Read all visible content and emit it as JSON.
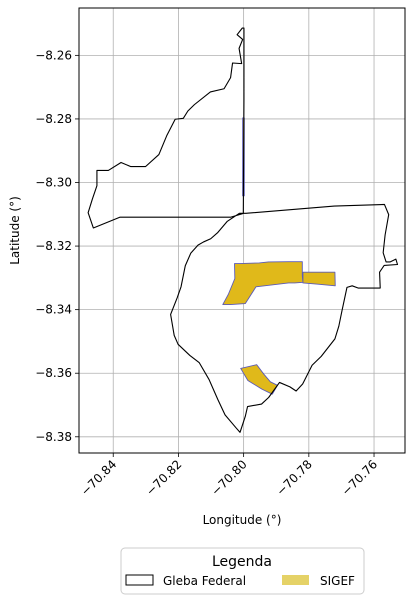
{
  "chart_data": {
    "type": "map",
    "xlabel": "Longitude (°)",
    "ylabel": "Latitude (°)",
    "xlim": [
      -70.8505,
      -70.7505
    ],
    "ylim": [
      -8.3851,
      -8.2451
    ],
    "xticks": [
      -70.84,
      -70.82,
      -70.8,
      -70.78,
      -70.76
    ],
    "xtick_labels": [
      "−70.84",
      "−70.82",
      "−70.80",
      "−70.78",
      "−70.76"
    ],
    "yticks": [
      -8.38,
      -8.36,
      -8.34,
      -8.32,
      -8.3,
      -8.28,
      -8.26
    ],
    "ytick_labels": [
      "−8.38",
      "−8.36",
      "−8.34",
      "−8.32",
      "−8.30",
      "−8.28",
      "−8.26"
    ],
    "grid": true,
    "legend": {
      "title": "Legenda",
      "placement": "bottom-center",
      "entries": [
        {
          "label": "Gleba Federal",
          "style": "outline",
          "color": "#000000"
        },
        {
          "label": "SIGEF",
          "style": "fill",
          "color": "#e5d267"
        }
      ]
    },
    "layers": [
      {
        "name": "Gleba Federal",
        "fill": "none",
        "stroke": "#000000",
        "polygons": [
          [
            [
              -70.8004,
              -8.2514
            ],
            [
              -70.7999,
              -8.2514
            ],
            [
              -70.7999,
              -8.2739
            ],
            [
              -70.8001,
              -8.3097
            ],
            [
              -70.7993,
              -8.3097
            ],
            [
              -70.7722,
              -8.3074
            ],
            [
              -70.7568,
              -8.3069
            ],
            [
              -70.7555,
              -8.3101
            ],
            [
              -70.7566,
              -8.3165
            ],
            [
              -70.7572,
              -8.3221
            ],
            [
              -70.7563,
              -8.325
            ],
            [
              -70.7551,
              -8.325
            ],
            [
              -70.7533,
              -8.3241
            ],
            [
              -70.7528,
              -8.3258
            ],
            [
              -70.7569,
              -8.3261
            ],
            [
              -70.7583,
              -8.3282
            ],
            [
              -70.7581,
              -8.3332
            ],
            [
              -70.7649,
              -8.3332
            ],
            [
              -70.7667,
              -8.3325
            ],
            [
              -70.7683,
              -8.333
            ],
            [
              -70.7698,
              -8.3402
            ],
            [
              -70.7708,
              -8.3452
            ],
            [
              -70.772,
              -8.3492
            ],
            [
              -70.7762,
              -8.3547
            ],
            [
              -70.779,
              -8.3575
            ],
            [
              -70.7819,
              -8.3634
            ],
            [
              -70.7839,
              -8.3656
            ],
            [
              -70.7858,
              -8.3643
            ],
            [
              -70.789,
              -8.3629
            ],
            [
              -70.7923,
              -8.3676
            ],
            [
              -70.7945,
              -8.3697
            ],
            [
              -70.7988,
              -8.3705
            ],
            [
              -70.7995,
              -8.3736
            ],
            [
              -70.8011,
              -8.3786
            ],
            [
              -70.8024,
              -8.3771
            ],
            [
              -70.8057,
              -8.3731
            ],
            [
              -70.8079,
              -8.3683
            ],
            [
              -70.8106,
              -8.362
            ],
            [
              -70.8136,
              -8.3567
            ],
            [
              -70.8165,
              -8.3544
            ],
            [
              -70.8201,
              -8.3509
            ],
            [
              -70.8213,
              -8.3481
            ],
            [
              -70.8224,
              -8.3415
            ],
            [
              -70.8204,
              -8.3363
            ],
            [
              -70.8192,
              -8.3328
            ],
            [
              -70.8179,
              -8.3262
            ],
            [
              -70.8162,
              -8.3222
            ],
            [
              -70.814,
              -8.3197
            ],
            [
              -70.8123,
              -8.3187
            ],
            [
              -70.8101,
              -8.3177
            ],
            [
              -70.8079,
              -8.3157
            ],
            [
              -70.805,
              -8.3122
            ],
            [
              -70.8013,
              -8.3097
            ],
            [
              -70.8,
              -8.3097
            ],
            [
              -70.8039,
              -8.3109
            ],
            [
              -70.8379,
              -8.3109
            ],
            [
              -70.8461,
              -8.3143
            ],
            [
              -70.8477,
              -8.3095
            ],
            [
              -70.8464,
              -8.3052
            ],
            [
              -70.845,
              -8.301
            ],
            [
              -70.845,
              -8.2962
            ],
            [
              -70.8415,
              -8.2962
            ],
            [
              -70.8376,
              -8.2937
            ],
            [
              -70.8346,
              -8.295
            ],
            [
              -70.8301,
              -8.295
            ],
            [
              -70.826,
              -8.2912
            ],
            [
              -70.8236,
              -8.2853
            ],
            [
              -70.821,
              -8.2801
            ],
            [
              -70.8185,
              -8.2798
            ],
            [
              -70.8171,
              -8.2775
            ],
            [
              -70.8151,
              -8.2755
            ],
            [
              -70.8102,
              -8.2715
            ],
            [
              -70.806,
              -8.2705
            ],
            [
              -70.804,
              -8.267
            ],
            [
              -70.8034,
              -8.2624
            ],
            [
              -70.8006,
              -8.2626
            ],
            [
              -70.8014,
              -8.2578
            ],
            [
              -70.8003,
              -8.255
            ],
            [
              -70.802,
              -8.2535
            ],
            [
              -70.8004,
              -8.2514
            ]
          ]
        ]
      },
      {
        "name": "SIGEF",
        "fill": "#e0b91a",
        "stroke": "#5b5bb8",
        "polygons": [
          [
            [
              -70.8028,
              -8.3255
            ],
            [
              -70.8012,
              -8.3255
            ],
            [
              -70.7952,
              -8.3253
            ],
            [
              -70.7924,
              -8.325
            ],
            [
              -70.7862,
              -8.3249
            ],
            [
              -70.782,
              -8.3249
            ],
            [
              -70.782,
              -8.3294
            ],
            [
              -70.7818,
              -8.3314
            ],
            [
              -70.7843,
              -8.3316
            ],
            [
              -70.7862,
              -8.3316
            ],
            [
              -70.792,
              -8.3323
            ],
            [
              -70.7962,
              -8.3328
            ],
            [
              -70.7995,
              -8.3381
            ],
            [
              -70.804,
              -8.3384
            ],
            [
              -70.8064,
              -8.3384
            ],
            [
              -70.8047,
              -8.3352
            ],
            [
              -70.8027,
              -8.3302
            ],
            [
              -70.8028,
              -8.3255
            ]
          ],
          [
            [
              -70.7818,
              -8.3282
            ],
            [
              -70.7818,
              -8.3316
            ],
            [
              -70.7772,
              -8.332
            ],
            [
              -70.7719,
              -8.3325
            ],
            [
              -70.772,
              -8.3282
            ],
            [
              -70.7818,
              -8.3282
            ]
          ],
          [
            [
              -70.8009,
              -8.3585
            ],
            [
              -70.7987,
              -8.3623
            ],
            [
              -70.7944,
              -8.365
            ],
            [
              -70.7912,
              -8.3666
            ],
            [
              -70.7896,
              -8.3638
            ],
            [
              -70.7918,
              -8.3627
            ],
            [
              -70.7938,
              -8.3603
            ],
            [
              -70.796,
              -8.3573
            ],
            [
              -70.8009,
              -8.3585
            ]
          ],
          [
            [
              -70.8003,
              -8.2797
            ],
            [
              -70.7998,
              -8.2797
            ],
            [
              -70.7998,
              -8.3042
            ],
            [
              -70.8003,
              -8.3042
            ],
            [
              -70.8003,
              -8.2797
            ]
          ]
        ]
      }
    ]
  }
}
